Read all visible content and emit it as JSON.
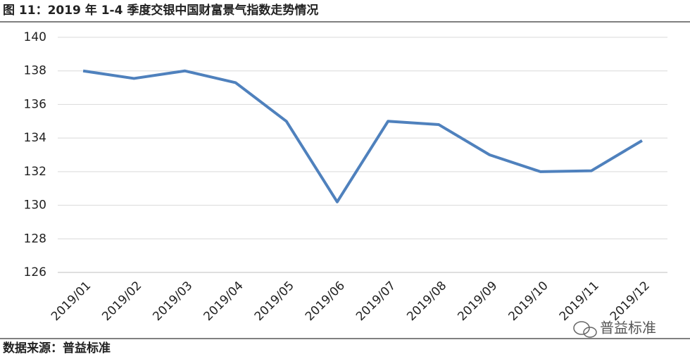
{
  "chart_data": {
    "type": "line",
    "title": "图 11：2019 年 1-4 季度交银中国财富景气指数走势情况",
    "source": "数据来源：普益标准",
    "watermark": "普益标准",
    "categories": [
      "2019/01",
      "2019/02",
      "2019/03",
      "2019/04",
      "2019/05",
      "2019/06",
      "2019/07",
      "2019/08",
      "2019/09",
      "2019/10",
      "2019/11",
      "2019/12"
    ],
    "series": [
      {
        "color": "#4f81bd",
        "values": [
          138.0,
          137.55,
          138.0,
          137.3,
          135.0,
          130.2,
          135.0,
          134.8,
          133.0,
          132.0,
          132.05,
          133.85
        ]
      }
    ],
    "ylim": [
      126,
      140
    ],
    "yticks": [
      126,
      128,
      130,
      132,
      134,
      136,
      138,
      140
    ],
    "grid": true
  }
}
